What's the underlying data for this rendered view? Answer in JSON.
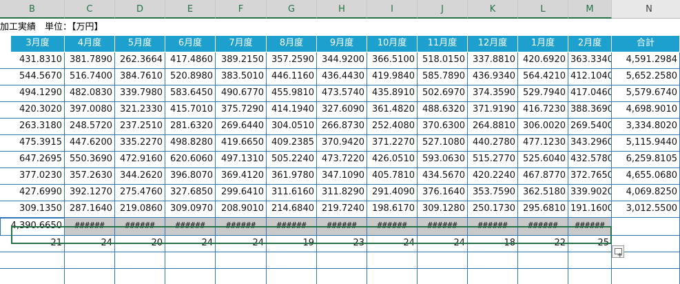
{
  "columns": [
    "B",
    "C",
    "D",
    "E",
    "F",
    "G",
    "H",
    "I",
    "J",
    "K",
    "L",
    "M",
    "N"
  ],
  "title_text": "加工実績　単位：【万円】",
  "headers": [
    "3月度",
    "4月度",
    "5月度",
    "6月度",
    "7月度",
    "8月度",
    "9月度",
    "10月度",
    "11月度",
    "12月度",
    "1月度",
    "2月度",
    "合計"
  ],
  "rows": [
    [
      "431.8310",
      "381.7890",
      "262.3664",
      "417.4860",
      "389.2150",
      "357.2590",
      "344.9200",
      "366.5100",
      "518.0150",
      "337.8810",
      "420.6920",
      "363.3340",
      "4,591.2984"
    ],
    [
      "544.5670",
      "516.7400",
      "384.7610",
      "520.8980",
      "383.5010",
      "446.1160",
      "436.4430",
      "419.9840",
      "585.7890",
      "436.9340",
      "564.4210",
      "412.1040",
      "5,652.2580"
    ],
    [
      "494.1290",
      "482.0830",
      "339.7980",
      "583.6450",
      "490.6770",
      "455.9810",
      "473.5740",
      "435.8910",
      "502.6970",
      "374.3590",
      "529.7940",
      "417.0460",
      "5,579.6740"
    ],
    [
      "420.3020",
      "397.0080",
      "321.2330",
      "415.7010",
      "375.7290",
      "414.1940",
      "327.6090",
      "361.4820",
      "488.6320",
      "371.9190",
      "416.7230",
      "388.3690",
      "4,698.9010"
    ],
    [
      "263.3180",
      "248.5720",
      "237.2510",
      "281.6320",
      "269.6440",
      "304.0510",
      "266.8730",
      "252.4080",
      "370.6300",
      "264.8810",
      "306.0020",
      "269.5400",
      "3,334.8020"
    ],
    [
      "475.3915",
      "447.6200",
      "335.2270",
      "498.8280",
      "419.6650",
      "409.2385",
      "370.9420",
      "371.2270",
      "527.1080",
      "440.2780",
      "477.1230",
      "343.2960",
      "5,115.9440"
    ],
    [
      "647.2695",
      "550.3690",
      "472.9160",
      "620.6060",
      "497.1310",
      "505.2240",
      "473.7220",
      "426.0510",
      "593.0630",
      "515.2770",
      "525.6040",
      "432.5780",
      "6,259.8105"
    ],
    [
      "377.0230",
      "357.2630",
      "344.2620",
      "396.8070",
      "369.4120",
      "361.9780",
      "347.1090",
      "405.7810",
      "434.5670",
      "420.2240",
      "467.8770",
      "372.7650",
      "4,655.0680"
    ],
    [
      "427.6990",
      "392.1270",
      "275.4760",
      "327.6850",
      "299.6410",
      "311.6160",
      "311.8290",
      "291.4090",
      "376.1640",
      "353.7590",
      "362.5180",
      "339.9020",
      "4,069.8250"
    ],
    [
      "309.1350",
      "287.1640",
      "219.0860",
      "309.0970",
      "208.9010",
      "214.6840",
      "219.7240",
      "198.6170",
      "309.1280",
      "250.1730",
      "295.6810",
      "191.1600",
      "3,012.5500"
    ]
  ],
  "total_row": [
    "4,390.6650",
    "######",
    "######",
    "######",
    "######",
    "######",
    "######",
    "######",
    "######",
    "######",
    "######",
    "######",
    ""
  ],
  "count_row": [
    "21",
    "24",
    "20",
    "24",
    "24",
    "19",
    "23",
    "24",
    "24",
    "18",
    "22",
    "25",
    ""
  ],
  "colors": {
    "header_bg": "#1ea0cf",
    "grid_line": "#2e75b6",
    "selection": "#217346"
  },
  "icons": {
    "quick_analysis": "quick-analysis-icon"
  }
}
